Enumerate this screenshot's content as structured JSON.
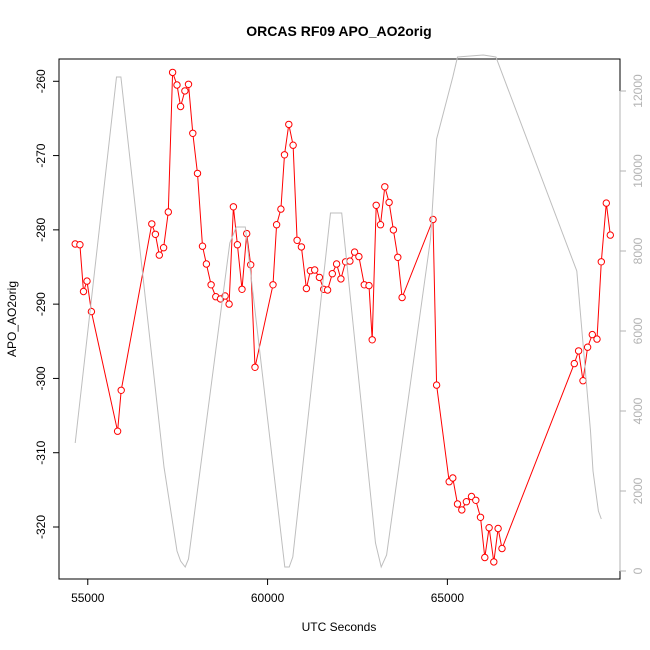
{
  "chart_data": {
    "type": "line",
    "title": "ORCAS RF09 APO_AO2orig",
    "xlabel": "UTC Seconds",
    "ylabel": "APO_AO2orig",
    "xlim": [
      54200,
      69800
    ],
    "ylim": [
      -327,
      -257
    ],
    "y2lim": [
      -200,
      12800
    ],
    "x_ticks": [
      55000,
      60000,
      65000
    ],
    "y_ticks": [
      -320,
      -310,
      -300,
      -290,
      -280,
      -270,
      -260
    ],
    "y2_ticks": [
      0,
      2000,
      4000,
      6000,
      8000,
      10000,
      12000
    ],
    "grid": false,
    "series": [
      {
        "color": "#ff0000",
        "style": "line+points",
        "axis": "left",
        "x": [
          54650,
          54780,
          54880,
          54980,
          55100,
          55830,
          55930,
          56780,
          56880,
          56990,
          57110,
          57240,
          57360,
          57480,
          57580,
          57700,
          57800,
          57920,
          58050,
          58190,
          58300,
          58430,
          58560,
          58690,
          58820,
          58930,
          59050,
          59160,
          59290,
          59420,
          59530,
          59650,
          60150,
          60250,
          60370,
          60470,
          60590,
          60710,
          60820,
          60940,
          61080,
          61190,
          61310,
          61440,
          61560,
          61670,
          61800,
          61920,
          62040,
          62170,
          62290,
          62420,
          62540,
          62690,
          62820,
          62910,
          63020,
          63140,
          63260,
          63380,
          63500,
          63620,
          63740,
          64600,
          64700,
          65050,
          65150,
          65280,
          65400,
          65530,
          65670,
          65790,
          65920,
          66040,
          66160,
          66290,
          66410,
          66520,
          68530,
          68650,
          68770,
          68900,
          69030,
          69160,
          69280,
          69420,
          69530
        ],
        "y": [
          -281.9,
          -282.0,
          -288.3,
          -286.9,
          -291.0,
          -307.1,
          -301.6,
          -279.2,
          -280.6,
          -283.4,
          -282.4,
          -277.6,
          -258.8,
          -260.5,
          -263.4,
          -261.3,
          -260.4,
          -267.0,
          -272.4,
          -282.2,
          -284.6,
          -287.4,
          -289.0,
          -289.3,
          -288.9,
          -290.0,
          -276.9,
          -282.0,
          -288.0,
          -280.5,
          -284.7,
          -298.5,
          -287.4,
          -279.3,
          -277.2,
          -269.9,
          -265.8,
          -268.6,
          -281.4,
          -282.3,
          -287.9,
          -285.5,
          -285.4,
          -286.4,
          -288.0,
          -288.1,
          -285.9,
          -284.6,
          -286.6,
          -284.3,
          -284.2,
          -283.0,
          -283.6,
          -287.4,
          -287.5,
          -294.8,
          -276.7,
          -279.3,
          -274.2,
          -276.3,
          -280.0,
          -283.7,
          -289.1,
          -278.6,
          -300.9,
          -313.9,
          -313.4,
          -316.9,
          -317.7,
          -316.6,
          -315.9,
          -316.4,
          -318.7,
          -324.1,
          -320.1,
          -324.7,
          -320.2,
          -322.9,
          -298.0,
          -296.3,
          -300.3,
          -295.8,
          -294.1,
          -294.7,
          -284.3,
          -276.4,
          -280.7
        ]
      },
      {
        "color": "#bebebe",
        "style": "line",
        "axis": "right",
        "x": [
          54650,
          55800,
          55920,
          57120,
          57480,
          57580,
          57710,
          57800,
          58950,
          59130,
          59380,
          60480,
          60600,
          60700,
          61750,
          62060,
          63000,
          63160,
          63310,
          64530,
          64700,
          65150,
          65280,
          66000,
          66350,
          68600,
          68980,
          69050,
          69200,
          69280
        ],
        "y": [
          3200,
          12350,
          12350,
          2600,
          500,
          250,
          100,
          300,
          8200,
          8600,
          8600,
          100,
          100,
          350,
          8950,
          8950,
          700,
          100,
          400,
          8300,
          10800,
          12350,
          12850,
          12900,
          12850,
          7500,
          3500,
          2500,
          1500,
          1300
        ]
      }
    ]
  }
}
